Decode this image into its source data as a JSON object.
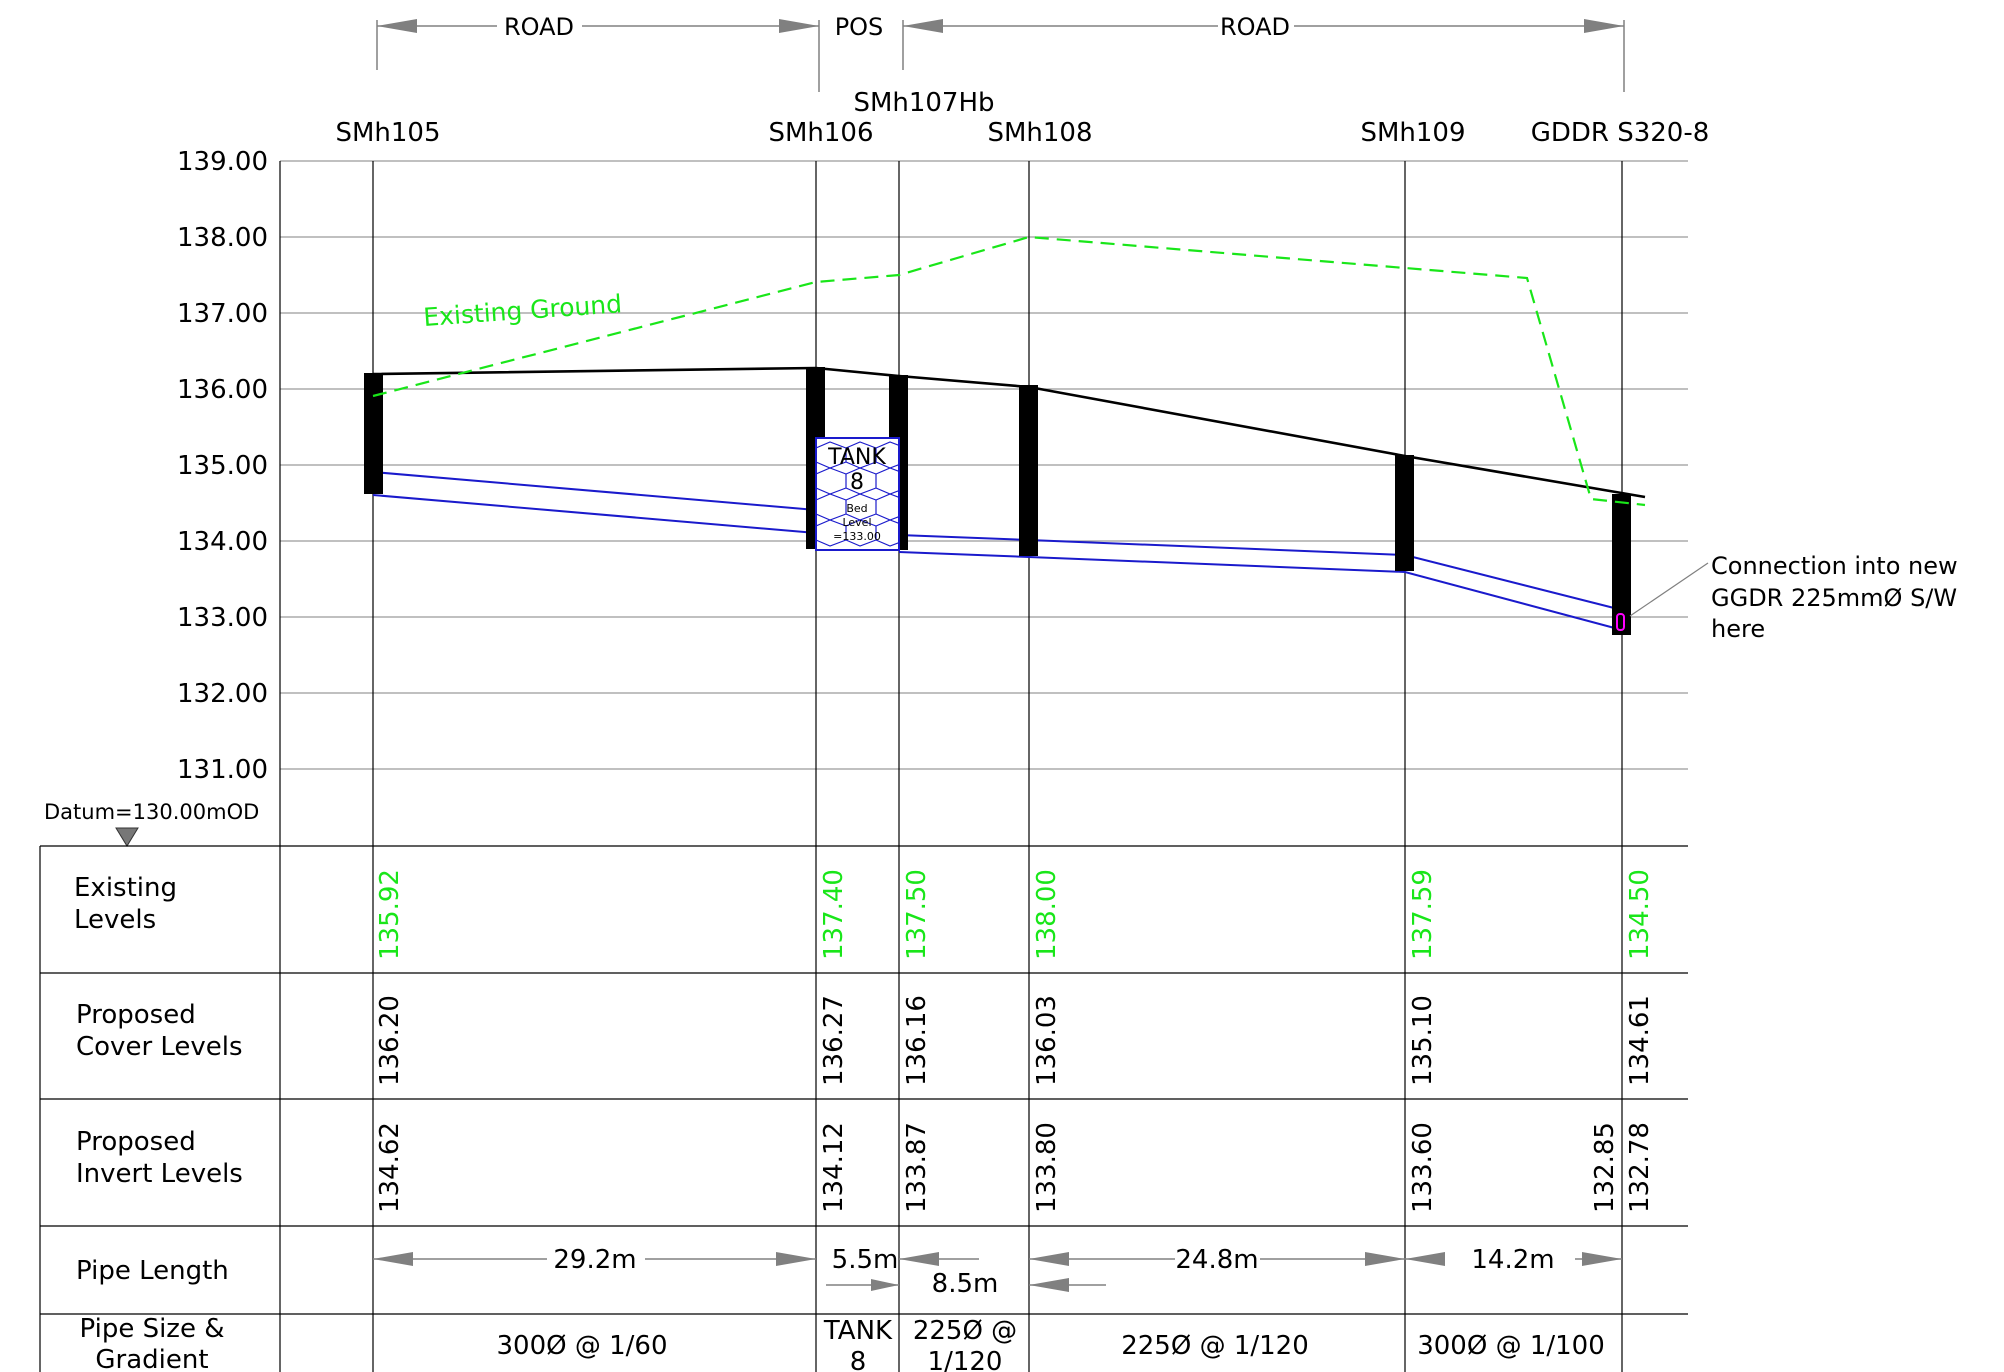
{
  "sections": {
    "road_left": "ROAD",
    "pos": "POS",
    "road_right": "ROAD"
  },
  "manholes": [
    "SMh105",
    "SMh106",
    "SMh107Hb",
    "SMh108",
    "SMh109",
    "GDDR S320-8"
  ],
  "y_axis": {
    "ticks": [
      "139.00",
      "138.00",
      "137.00",
      "136.00",
      "135.00",
      "134.00",
      "133.00",
      "132.00",
      "131.00"
    ],
    "tick_values": [
      139,
      138,
      137,
      136,
      135,
      134,
      133,
      132,
      131
    ]
  },
  "datum": "Datum=130.00mOD",
  "existing_ground_label": "Existing Ground",
  "tank": {
    "title": "TANK",
    "number": "8",
    "bed1": "Bed",
    "bed2": "Level",
    "bed3": "=133.00"
  },
  "connection_note": [
    "Connection into new",
    "GGDR 225mmØ S/W",
    "here"
  ],
  "table": {
    "row_labels": {
      "existing": [
        "Existing",
        "Levels"
      ],
      "cover": [
        "Proposed",
        "Cover Levels"
      ],
      "invert": [
        "Proposed",
        "Invert Levels"
      ],
      "length": [
        "Pipe Length"
      ],
      "size": [
        "Pipe Size &",
        "Gradient"
      ]
    },
    "existing_levels": [
      "135.92",
      "137.40",
      "137.50",
      "138.00",
      "137.59",
      "134.50"
    ],
    "cover_levels": [
      "136.20",
      "136.27",
      "136.16",
      "136.03",
      "135.10",
      "134.61"
    ],
    "invert_levels": [
      "134.62",
      "134.12",
      "133.87",
      "133.80",
      "133.60",
      "132.85",
      "132.78"
    ],
    "pipe_lengths": [
      "29.2m",
      "5.5m",
      "8.5m",
      "24.8m",
      "14.2m"
    ],
    "pipe_sizes": [
      [
        "300Ø @ 1/60"
      ],
      [
        "TANK",
        "8"
      ],
      [
        "225Ø @",
        "1/120"
      ],
      [
        "225Ø @ 1/120"
      ],
      [
        "300Ø @ 1/100"
      ]
    ]
  },
  "colors": {
    "ground": "#19e619",
    "pipe": "#1a1acc",
    "cover": "#000000",
    "grid": "#9a9a9a",
    "arrow": "#808080",
    "connection": "#ff00ff"
  }
}
